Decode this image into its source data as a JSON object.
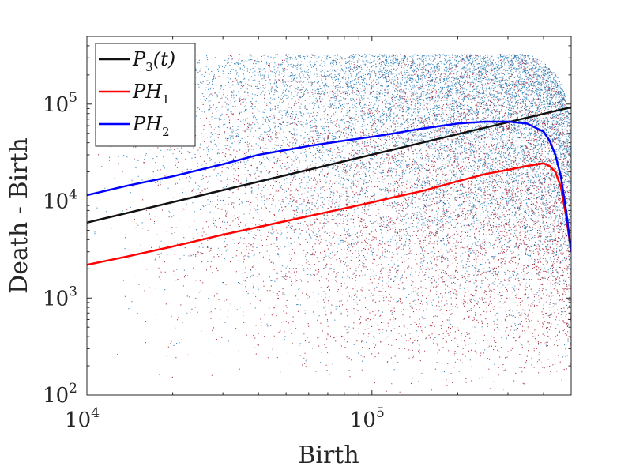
{
  "chart_data": {
    "type": "scatter",
    "title": "",
    "xlabel": "Birth",
    "ylabel": "Death - Birth",
    "xscale": "log",
    "yscale": "log",
    "xlim": [
      10000,
      500000
    ],
    "ylim": [
      100,
      500000
    ],
    "grid": false,
    "legend_position": "top-left",
    "x_ticks": [
      {
        "value": 10000,
        "base": "10",
        "exp": "4"
      },
      {
        "value": 100000,
        "base": "10",
        "exp": "5"
      }
    ],
    "y_ticks": [
      {
        "value": 100,
        "base": "10",
        "exp": "2"
      },
      {
        "value": 1000,
        "base": "10",
        "exp": "3"
      },
      {
        "value": 10000,
        "base": "10",
        "exp": "4"
      },
      {
        "value": 100000,
        "base": "10",
        "exp": "5"
      }
    ],
    "scatter_clouds": [
      {
        "color": "#1f77b4",
        "description_of_region": "PH2 points"
      },
      {
        "color": "#a0142a",
        "description_of_region": "PH1 points"
      }
    ],
    "series": [
      {
        "name": "P",
        "legend_sub": "3",
        "legend_suffix": "(t)",
        "color": "#111111",
        "x": [
          10000,
          500000
        ],
        "y": [
          6000,
          93000
        ]
      },
      {
        "name": "PH",
        "legend_sub": "1",
        "legend_suffix": "",
        "color": "#ff0000",
        "x": [
          10000,
          14000,
          20000,
          30000,
          40000,
          60000,
          80000,
          100000,
          120000,
          150000,
          200000,
          250000,
          300000,
          350000,
          400000,
          420000,
          440000,
          460000,
          480000,
          500000
        ],
        "y": [
          2200,
          2700,
          3400,
          4500,
          5400,
          7000,
          8400,
          9700,
          11000,
          12700,
          16000,
          19000,
          21000,
          23000,
          24500,
          23000,
          20000,
          14000,
          7000,
          3000
        ]
      },
      {
        "name": "PH",
        "legend_sub": "2",
        "legend_suffix": "",
        "color": "#0000ff",
        "x": [
          10000,
          14000,
          20000,
          30000,
          40000,
          60000,
          80000,
          100000,
          120000,
          150000,
          200000,
          250000,
          300000,
          350000,
          400000,
          420000,
          440000,
          460000,
          480000,
          500000
        ],
        "y": [
          11500,
          14500,
          18000,
          24000,
          30000,
          37000,
          42000,
          46000,
          50000,
          56000,
          63000,
          66000,
          66000,
          63000,
          52000,
          42000,
          30000,
          18000,
          8000,
          3000
        ]
      }
    ]
  }
}
